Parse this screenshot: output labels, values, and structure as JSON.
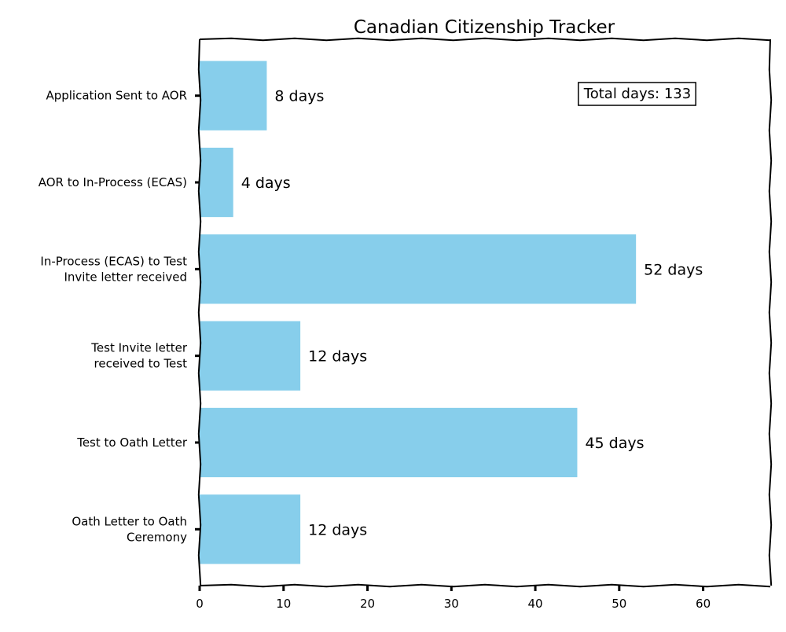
{
  "chart_data": {
    "type": "bar",
    "orientation": "horizontal",
    "title": "Canadian Citizenship Tracker",
    "xlabel": "",
    "ylabel": "",
    "categories": [
      [
        "Application Sent to AOR"
      ],
      [
        "AOR to In-Process (ECAS)"
      ],
      [
        "In-Process (ECAS) to Test",
        "Invite letter received"
      ],
      [
        "Test Invite letter",
        "received to Test"
      ],
      [
        "Test to Oath Letter"
      ],
      [
        "Oath Letter to Oath",
        "Ceremony"
      ]
    ],
    "values": [
      8,
      4,
      52,
      12,
      45,
      12
    ],
    "value_labels": [
      "8 days",
      "4 days",
      "52 days",
      "12 days",
      "45 days",
      "12 days"
    ],
    "xlim": [
      0,
      68
    ],
    "xticks": [
      0,
      10,
      20,
      30,
      40,
      50,
      60
    ],
    "xtick_labels": [
      "0",
      "10",
      "20",
      "30",
      "40",
      "50",
      "60"
    ],
    "grid": false,
    "bar_color": "#87CEEB",
    "annotation": {
      "text": "Total days: 133",
      "color": "#FF0000",
      "placement": "top-right"
    }
  }
}
